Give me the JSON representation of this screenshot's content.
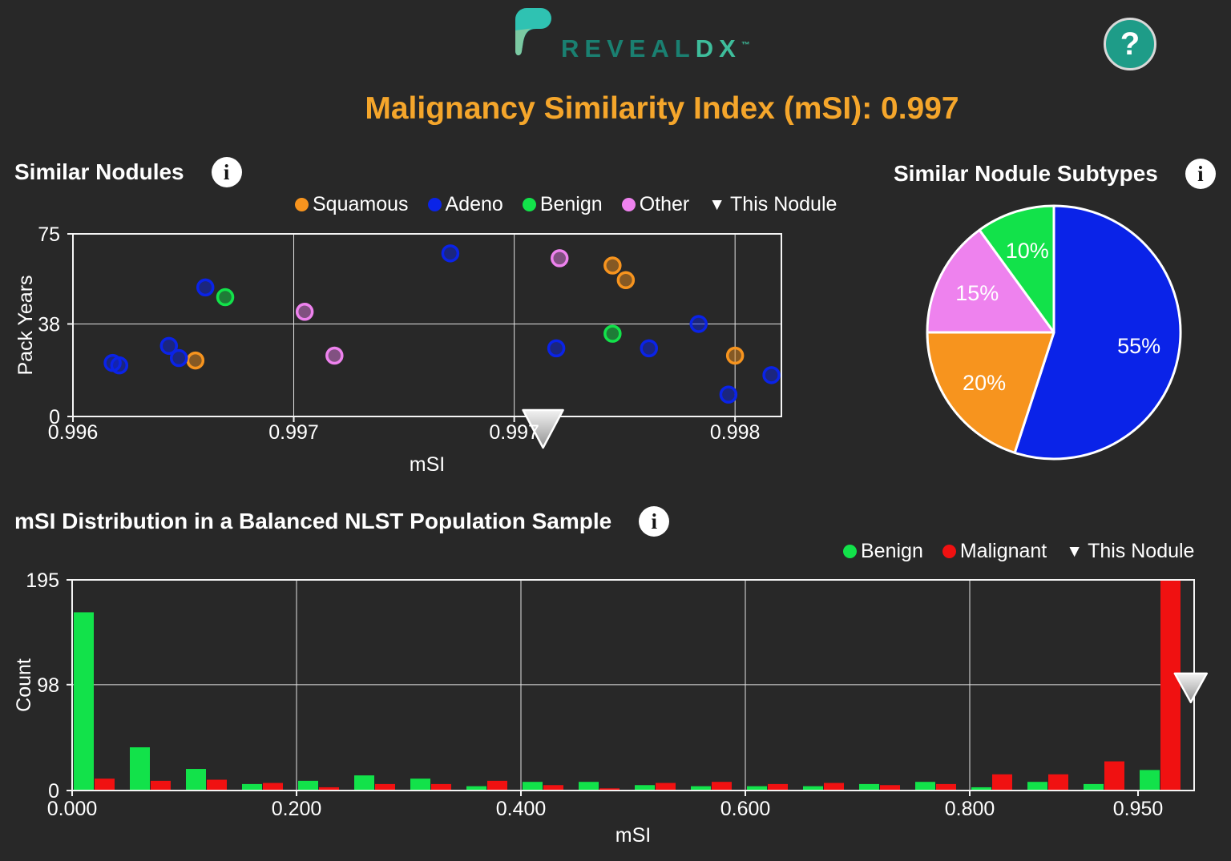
{
  "ui": {
    "brand": {
      "primary": "REVEAL",
      "secondary": "DX",
      "trademark": "™"
    },
    "help_label": "?",
    "info_glyph": "i",
    "triangle_glyph": "▼",
    "title": "Malignancy Similarity Index (mSI): 0.997",
    "colors": {
      "background": "#282828",
      "title": "#F5A62B",
      "brand_primary": "#1A8071",
      "brand_secondary": "#3EBD9B",
      "brand_mark_main": "#2FC2B2",
      "brand_mark_facet": "#7CC9A2",
      "help_background": "#1E9C88",
      "grid": "#E3E3E3",
      "axis_border": "#F5F5F5"
    }
  },
  "chart_data": [
    {
      "id": "similar_nodules_scatter",
      "type": "scatter",
      "title": "Similar Nodules",
      "xlabel": "mSI",
      "ylabel": "Pack Years",
      "xlim": [
        0.996,
        0.99814
      ],
      "ylim": [
        0,
        75
      ],
      "grid": true,
      "legend_position": "top",
      "xticks": [
        {
          "value": 0.996,
          "label": "0.996"
        },
        {
          "value": 0.996667,
          "label": "0.997"
        },
        {
          "value": 0.997333,
          "label": "0.997"
        },
        {
          "value": 0.998,
          "label": "0.998"
        }
      ],
      "yticks": [
        {
          "value": 0,
          "label": "0"
        },
        {
          "value": 38,
          "label": "38"
        },
        {
          "value": 75,
          "label": "75"
        }
      ],
      "series": [
        {
          "name": "Squamous",
          "color": "#F7941E",
          "points": [
            [
              0.99637,
              23
            ],
            [
              0.99763,
              62
            ],
            [
              0.99767,
              56
            ],
            [
              0.998,
              25
            ]
          ]
        },
        {
          "name": "Adeno",
          "color": "#0A23E8",
          "points": [
            [
              0.9964,
              53
            ],
            [
              0.99629,
              29
            ],
            [
              0.99632,
              24
            ],
            [
              0.99612,
              22
            ],
            [
              0.99614,
              21
            ],
            [
              0.99714,
              67
            ],
            [
              0.99789,
              38
            ],
            [
              0.99746,
              28
            ],
            [
              0.99774,
              28
            ],
            [
              0.99811,
              17
            ],
            [
              0.99798,
              9
            ]
          ]
        },
        {
          "name": "Benign",
          "color": "#12E24A",
          "points": [
            [
              0.99646,
              49
            ],
            [
              0.99763,
              34
            ]
          ]
        },
        {
          "name": "Other",
          "color": "#EE82EE",
          "points": [
            [
              0.9967,
              43
            ],
            [
              0.99679,
              25
            ],
            [
              0.99747,
              65
            ]
          ]
        }
      ],
      "this_nodule": {
        "label": "This Nodule",
        "x": 0.99742
      }
    },
    {
      "id": "subtype_pie",
      "type": "pie",
      "title": "Similar Nodule Subtypes",
      "direction": "clockwise",
      "start_angle_deg": 0,
      "slices": [
        {
          "label": "Adeno",
          "value": 55,
          "display": "55%",
          "color": "#0A23E8"
        },
        {
          "label": "Squamous",
          "value": 20,
          "display": "20%",
          "color": "#F7941E"
        },
        {
          "label": "Other",
          "value": 15,
          "display": "15%",
          "color": "#EE82EE"
        },
        {
          "label": "Benign",
          "value": 10,
          "display": "10%",
          "color": "#12E24A"
        }
      ]
    },
    {
      "id": "msi_distribution",
      "type": "bar",
      "title": "mSI Distribution in a Balanced NLST Population Sample",
      "xlabel": "mSI",
      "ylabel": "Count",
      "xlim": [
        0,
        1.0
      ],
      "ylim": [
        0,
        195
      ],
      "grid": true,
      "legend_position": "top-right",
      "bin_width": 0.05,
      "bin_starts": [
        0,
        0.05,
        0.1,
        0.15,
        0.2,
        0.25,
        0.3,
        0.35,
        0.4,
        0.45,
        0.5,
        0.55,
        0.6,
        0.65,
        0.7,
        0.75,
        0.8,
        0.85,
        0.9,
        0.95
      ],
      "xticks": [
        {
          "value": 0.0,
          "label": "0.000",
          "grid": false
        },
        {
          "value": 0.2,
          "label": "0.200",
          "grid": true
        },
        {
          "value": 0.4,
          "label": "0.400",
          "grid": true
        },
        {
          "value": 0.6,
          "label": "0.600",
          "grid": true
        },
        {
          "value": 0.8,
          "label": "0.800",
          "grid": true
        },
        {
          "value": 0.95,
          "label": "0.950",
          "grid": false
        }
      ],
      "yticks": [
        {
          "value": 0,
          "label": "0"
        },
        {
          "value": 98,
          "label": "98"
        },
        {
          "value": 195,
          "label": "195"
        }
      ],
      "series": [
        {
          "name": "Benign",
          "color": "#12E24A",
          "values": [
            165,
            40,
            20,
            6,
            9,
            14,
            11,
            4,
            8,
            8,
            5,
            4,
            4,
            4,
            6,
            8,
            3,
            8,
            6,
            19
          ]
        },
        {
          "name": "Malignant",
          "color": "#F01111",
          "values": [
            11,
            9,
            10,
            7,
            3,
            6,
            6,
            9,
            5,
            2,
            7,
            8,
            6,
            7,
            5,
            6,
            15,
            15,
            27,
            195
          ]
        }
      ],
      "this_nodule": {
        "label": "This Nodule",
        "x": 0.997
      }
    }
  ]
}
